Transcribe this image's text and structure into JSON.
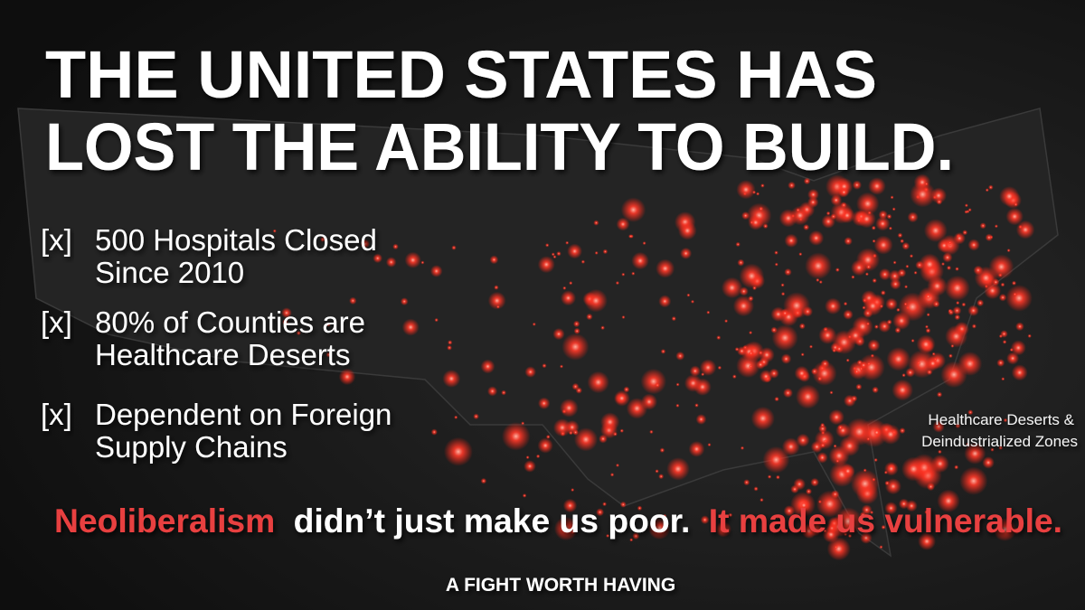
{
  "header": {
    "title_lines": [
      "THE UNITED STATES HAS",
      "LOST THE ABILITY  TO BUILD."
    ]
  },
  "bullets": [
    {
      "marker": "[x]",
      "lines": [
        "500 Hospitals Closed",
        "Since 2010"
      ]
    },
    {
      "marker": "[x]",
      "lines": [
        "80% of Counties are",
        "Healthcare Deserts"
      ]
    },
    {
      "marker": "[x]",
      "lines": [
        "Dependent on Foreign",
        "Supply Chains"
      ]
    }
  ],
  "map_label": {
    "lines": [
      "Healthcare Deserts &",
      "Deindustrialized Zones"
    ]
  },
  "tagline": {
    "parts": [
      "Neoliberalism",
      "didn’t just make us poor.",
      "It made us vulnerable."
    ]
  },
  "footer": {
    "text": "A FIGHT WORTH HAVING"
  }
}
